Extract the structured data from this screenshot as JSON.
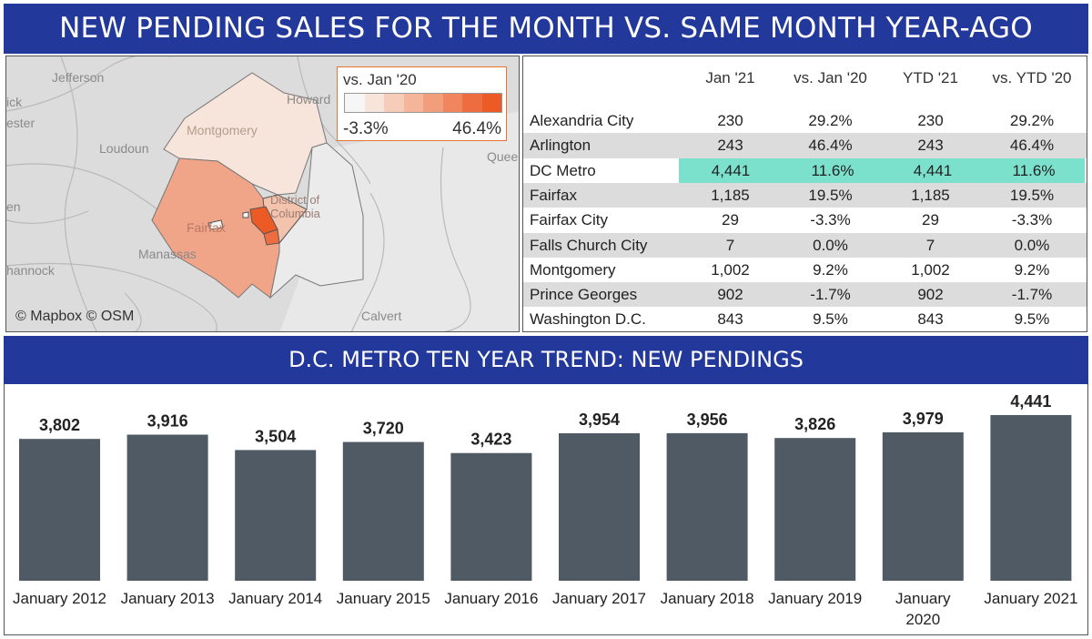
{
  "title": "NEW PENDING SALES FOR THE MONTH VS. SAME MONTH YEAR-AGO",
  "map": {
    "legend_title": "vs. Jan '20",
    "legend_min": "-3.3%",
    "legend_max": "46.4%",
    "legend_colors": [
      "#f6f6f6",
      "#f7e4da",
      "#f6cdb9",
      "#f4b59a",
      "#f29d7c",
      "#f0855e",
      "#ee6d40",
      "#ec5a26"
    ],
    "credit": "© Mapbox © OSM",
    "place_labels": {
      "jefferson": "Jefferson",
      "howard": "Howard",
      "loudoun": "Loudoun",
      "montgomery": "Montgomery",
      "district": "District of",
      "columbia": "Columbia",
      "fairfax": "Fairfax",
      "manassas": "Manassas",
      "calvert": "Calvert",
      "queen": "Quee",
      "wick": "ick",
      "ester": "ester",
      "en": "en",
      "hannock": "hannock"
    }
  },
  "table": {
    "headers": [
      "Jan '21",
      "vs. Jan '20",
      "YTD '21",
      "vs. YTD '20"
    ],
    "highlight_color": "#7be0cc",
    "rows": [
      {
        "name": "Alexandria City",
        "jan21": "230",
        "vs_jan20": "29.2%",
        "ytd21": "230",
        "vs_ytd20": "29.2%"
      },
      {
        "name": "Arlington",
        "jan21": "243",
        "vs_jan20": "46.4%",
        "ytd21": "243",
        "vs_ytd20": "46.4%"
      },
      {
        "name": "DC Metro",
        "jan21": "4,441",
        "vs_jan20": "11.6%",
        "ytd21": "4,441",
        "vs_ytd20": "11.6%"
      },
      {
        "name": "Fairfax",
        "jan21": "1,185",
        "vs_jan20": "19.5%",
        "ytd21": "1,185",
        "vs_ytd20": "19.5%"
      },
      {
        "name": "Fairfax City",
        "jan21": "29",
        "vs_jan20": "-3.3%",
        "ytd21": "29",
        "vs_ytd20": "-3.3%"
      },
      {
        "name": "Falls Church City",
        "jan21": "7",
        "vs_jan20": "0.0%",
        "ytd21": "7",
        "vs_ytd20": "0.0%"
      },
      {
        "name": "Montgomery",
        "jan21": "1,002",
        "vs_jan20": "9.2%",
        "ytd21": "1,002",
        "vs_ytd20": "9.2%"
      },
      {
        "name": "Prince Georges",
        "jan21": "902",
        "vs_jan20": "-1.7%",
        "ytd21": "902",
        "vs_ytd20": "-1.7%"
      },
      {
        "name": "Washington D.C.",
        "jan21": "843",
        "vs_jan20": "9.5%",
        "ytd21": "843",
        "vs_ytd20": "9.5%"
      }
    ]
  },
  "trend_title": "D.C. METRO TEN YEAR TREND: NEW PENDINGS",
  "chart_data": {
    "type": "bar",
    "title": "D.C. METRO TEN YEAR TREND: NEW PENDINGS",
    "categories": [
      "January 2012",
      "January 2013",
      "January 2014",
      "January 2015",
      "January 2016",
      "January 2017",
      "January 2018",
      "January 2019",
      "January 2020",
      "January 2021"
    ],
    "values": [
      3802,
      3916,
      3504,
      3720,
      3423,
      3954,
      3956,
      3826,
      3979,
      4441
    ],
    "value_labels": [
      "3,802",
      "3,916",
      "3,504",
      "3,720",
      "3,423",
      "3,954",
      "3,956",
      "3,826",
      "3,979",
      "4,441"
    ],
    "bar_color": "#4f5a64",
    "xlabel": "",
    "ylabel": "",
    "ylim": [
      0,
      4441
    ],
    "grid": false
  }
}
